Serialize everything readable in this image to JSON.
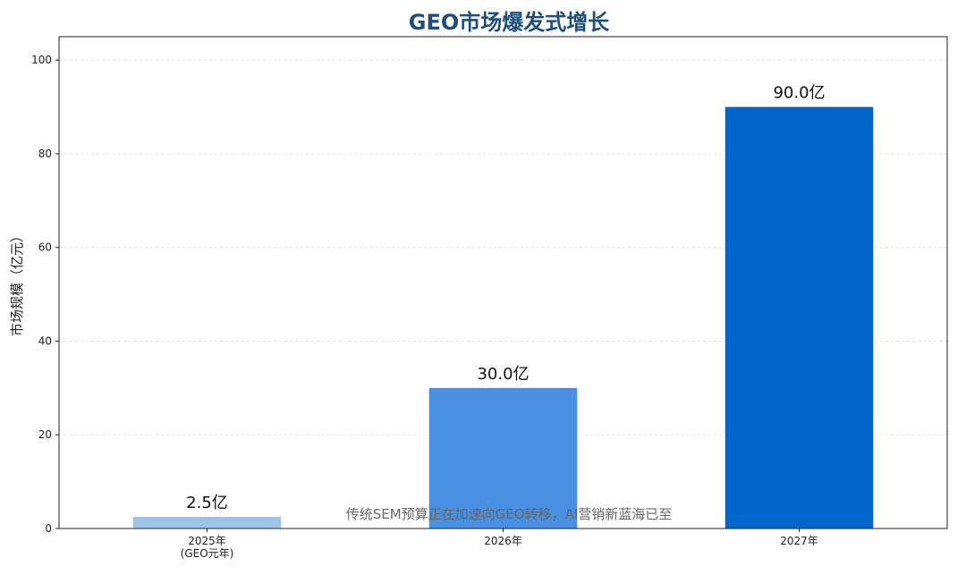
{
  "chart_data": {
    "type": "bar",
    "title": "GEO市场爆发式增长",
    "xlabel": "",
    "ylabel": "市场规模（亿元）",
    "categories": [
      "2025年\n(GEO元年)",
      "2026年",
      "2027年"
    ],
    "values": [
      2.5,
      30.0,
      90.0
    ],
    "data_labels": [
      "2.5亿",
      "30.0亿",
      "90.0亿"
    ],
    "colors": [
      "#9dc3e6",
      "#4a90e2",
      "#0066cc"
    ],
    "yticks": [
      "0",
      "20",
      "40",
      "60",
      "80",
      "100"
    ],
    "ylim": [
      0,
      105
    ],
    "grid": "y-dashed",
    "annotation": "传统SEM预算正在加速向GEO转移，AI营销新蓝海已至"
  }
}
